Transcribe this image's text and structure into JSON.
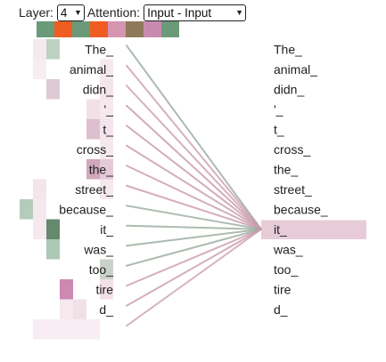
{
  "controls": {
    "layer_label": "Layer:",
    "layer_value": "4",
    "attention_label": "Attention:",
    "attention_value": "Input - Input"
  },
  "heads": [
    "#6a9a78",
    "#ef5d22",
    "#6a9a78",
    "#ef5d22",
    "#d594b0",
    "#8e7a5a",
    "#c98ab0",
    "#6a9a78"
  ],
  "tokens_left": [
    "The_",
    "animal_",
    "didn_",
    "'_",
    "t_",
    "cross_",
    "the_",
    "street_",
    "because_",
    "it_",
    "was_",
    "too_",
    "tire",
    "d_",
    ""
  ],
  "tokens_right": [
    "The_",
    "animal_",
    "didn_",
    "'_",
    "t_",
    "cross_",
    "the_",
    "street_",
    "because_",
    "it_",
    "was_",
    "too_",
    "tire",
    "d_"
  ],
  "focus_token": "it_",
  "highlight_color": "#e7ccd8",
  "line_colors": {
    "green": "#9cac9e",
    "pink": "#c99aad"
  },
  "attention_lines": [
    {
      "from": 0,
      "color": "green",
      "weight": 0.55
    },
    {
      "from": 1,
      "color": "pink",
      "weight": 0.45
    },
    {
      "from": 2,
      "color": "pink",
      "weight": 0.45
    },
    {
      "from": 3,
      "color": "pink",
      "weight": 0.55
    },
    {
      "from": 4,
      "color": "pink",
      "weight": 0.55
    },
    {
      "from": 5,
      "color": "pink",
      "weight": 0.5
    },
    {
      "from": 6,
      "color": "pink",
      "weight": 0.5
    },
    {
      "from": 7,
      "color": "pink",
      "weight": 0.5
    },
    {
      "from": 8,
      "color": "green",
      "weight": 0.5
    },
    {
      "from": 9,
      "color": "green",
      "weight": 0.55
    },
    {
      "from": 10,
      "color": "green",
      "weight": 0.55
    },
    {
      "from": 11,
      "color": "green",
      "weight": 0.55
    },
    {
      "from": 12,
      "color": "pink",
      "weight": 0.5
    },
    {
      "from": 13,
      "color": "pink",
      "weight": 0.5
    },
    {
      "from": 14,
      "color": "pink",
      "weight": 0.45
    }
  ],
  "heatmap": [
    {
      "row": 0,
      "col": 1,
      "color": "#6a9a78",
      "opacity": 0.45
    },
    {
      "row": 0,
      "col": 0,
      "color": "#d9a6bd",
      "opacity": 0.25
    },
    {
      "row": 1,
      "col": 0,
      "color": "#d9a6bd",
      "opacity": 0.2
    },
    {
      "row": 2,
      "col": 1,
      "color": "#b58aa2",
      "opacity": 0.45
    },
    {
      "row": 2,
      "col": 5,
      "color": "#d9a6bd",
      "opacity": 0.3
    },
    {
      "row": 1,
      "col": 5,
      "color": "#d9a6bd",
      "opacity": 0.25
    },
    {
      "row": 3,
      "col": 4,
      "color": "#d9a6bd",
      "opacity": 0.35
    },
    {
      "row": 4,
      "col": 4,
      "color": "#c28aa5",
      "opacity": 0.55
    },
    {
      "row": 4,
      "col": 5,
      "color": "#d9a6bd",
      "opacity": 0.3
    },
    {
      "row": 3,
      "col": 5,
      "color": "#d9a6bd",
      "opacity": 0.25
    },
    {
      "row": 5,
      "col": 5,
      "color": "#d9a6bd",
      "opacity": 0.25
    },
    {
      "row": 6,
      "col": 4,
      "color": "#b07090",
      "opacity": 0.6
    },
    {
      "row": 6,
      "col": 5,
      "color": "#c28aa5",
      "opacity": 0.45
    },
    {
      "row": 7,
      "col": 0,
      "color": "#d9a6bd",
      "opacity": 0.3
    },
    {
      "row": 7,
      "col": 5,
      "color": "#d9a6bd",
      "opacity": 0.25
    },
    {
      "row": 8,
      "col": 0,
      "color": "#d9a6bd",
      "opacity": 0.25
    },
    {
      "row": 9,
      "col": 1,
      "color": "#3d6b48",
      "opacity": 0.8
    },
    {
      "row": 9,
      "col": 0,
      "color": "#d9a6bd",
      "opacity": 0.25
    },
    {
      "row": 10,
      "col": 1,
      "color": "#6a9a78",
      "opacity": 0.55
    },
    {
      "row": 11,
      "col": 5,
      "color": "#8a9a8c",
      "opacity": 0.45
    },
    {
      "row": 12,
      "col": 2,
      "color": "#b04a88",
      "opacity": 0.65
    },
    {
      "row": 12,
      "col": 5,
      "color": "#d9a6bd",
      "opacity": 0.35
    },
    {
      "row": 13,
      "col": 3,
      "color": "#d9a6bd",
      "opacity": 0.35
    },
    {
      "row": 13,
      "col": 2,
      "color": "#d9a6bd",
      "opacity": 0.25
    },
    {
      "row": 14,
      "col": 0,
      "color": "#d9a6bd",
      "opacity": 0.2
    },
    {
      "row": 14,
      "col": 1,
      "color": "#d9a6bd",
      "opacity": 0.2
    },
    {
      "row": 14,
      "col": 2,
      "color": "#d9a6bd",
      "opacity": 0.2
    },
    {
      "row": 14,
      "col": 3,
      "color": "#d9a6bd",
      "opacity": 0.2
    },
    {
      "row": 14,
      "col": 4,
      "color": "#d9a6bd",
      "opacity": 0.2
    },
    {
      "row": 8,
      "col": -1,
      "color": "#6a9a78",
      "opacity": 0.5
    }
  ]
}
